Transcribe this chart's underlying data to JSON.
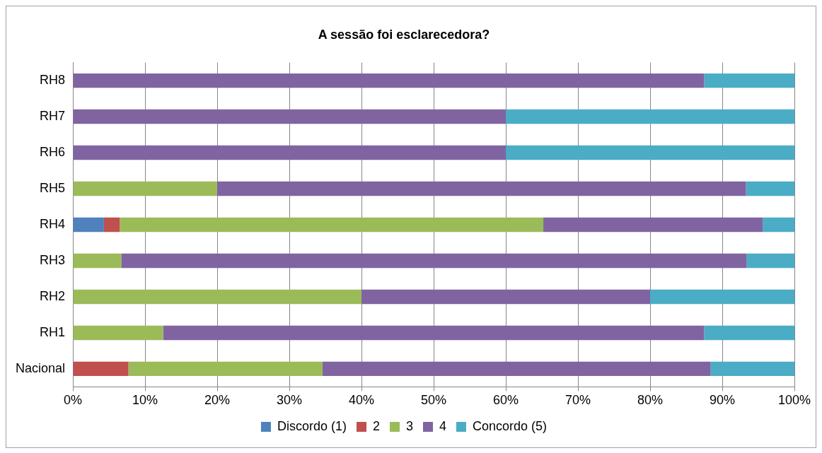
{
  "chart_data": {
    "type": "bar",
    "orientation": "horizontal",
    "stacked": true,
    "title": "A sessão foi esclarecedora?",
    "categories": [
      "RH8",
      "RH7",
      "RH6",
      "RH5",
      "RH4",
      "RH3",
      "RH2",
      "RH1",
      "Nacional"
    ],
    "series": [
      {
        "name": "Discordo (1)",
        "color": "#4f81bd",
        "values": [
          0,
          0,
          0,
          0,
          4.3,
          0,
          0,
          0,
          0
        ]
      },
      {
        "name": "2",
        "color": "#c0504d",
        "values": [
          0,
          0,
          0,
          0,
          2.2,
          0,
          0,
          0,
          7.7
        ]
      },
      {
        "name": "3",
        "color": "#9bbb59",
        "values": [
          0,
          0,
          0,
          20,
          58.7,
          6.7,
          40,
          12.5,
          26.9
        ]
      },
      {
        "name": "4",
        "color": "#8064a2",
        "values": [
          87.5,
          60,
          60,
          73.3,
          30.4,
          86.7,
          40,
          75,
          53.8
        ]
      },
      {
        "name": "Concordo (5)",
        "color": "#4bacc6",
        "values": [
          12.5,
          40,
          40,
          6.7,
          4.4,
          6.6,
          20,
          12.5,
          11.6
        ]
      }
    ],
    "xlim": [
      0,
      100
    ],
    "xticks": [
      {
        "value": 0,
        "label": "0%"
      },
      {
        "value": 10,
        "label": "10%"
      },
      {
        "value": 20,
        "label": "20%"
      },
      {
        "value": 30,
        "label": "30%"
      },
      {
        "value": 40,
        "label": "40%"
      },
      {
        "value": 50,
        "label": "50%"
      },
      {
        "value": 60,
        "label": "60%"
      },
      {
        "value": 70,
        "label": "70%"
      },
      {
        "value": 80,
        "label": "80%"
      },
      {
        "value": 90,
        "label": "90%"
      },
      {
        "value": 100,
        "label": "100%"
      }
    ],
    "grid": "x",
    "legend": "bottom"
  }
}
